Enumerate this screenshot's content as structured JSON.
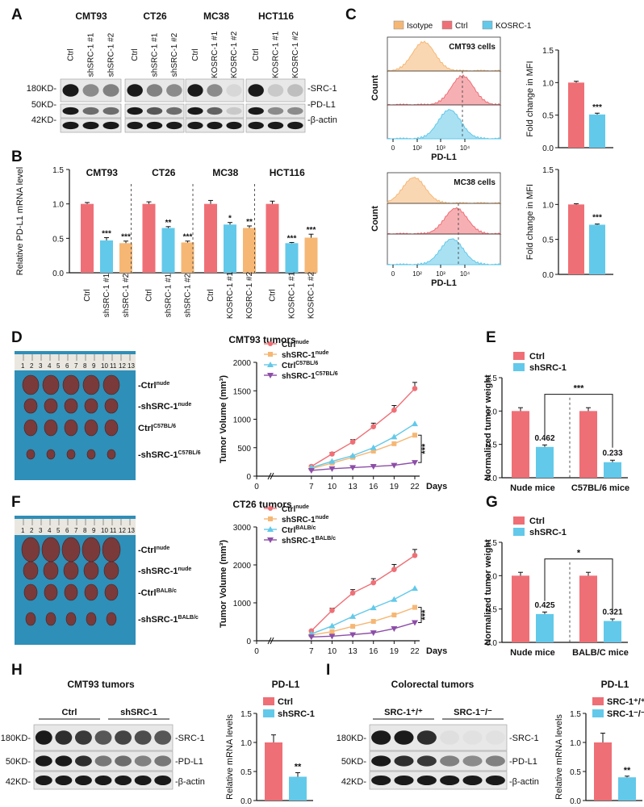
{
  "colors": {
    "red": "#ef6f76",
    "blue": "#62c9ea",
    "orange": "#f6b774",
    "purple": "#8d4ea8",
    "band": "#1a1a1a",
    "membrane": "#e8e8e8",
    "tray": "#2e8fb8"
  },
  "panel_labels": {
    "A": "A",
    "B": "B",
    "C": "C",
    "D": "D",
    "E": "E",
    "F": "F",
    "G": "G",
    "H": "H",
    "I": "I"
  },
  "panelA": {
    "lines": [
      "CMT93",
      "CT26",
      "MC38",
      "HCT116"
    ],
    "lanes": [
      [
        "Ctrl",
        "shSRC-1 #1",
        "shSRC-1 #2"
      ],
      [
        "Ctrl",
        "shSRC-1 #1",
        "shSRC-1 #2"
      ],
      [
        "Ctrl",
        "KOSRC-1 #1",
        "KOSRC-1 #2"
      ],
      [
        "Ctrl",
        "KOSRC-1 #1",
        "KOSRC-1 #2"
      ]
    ],
    "mw": [
      "180KD-",
      "50KD-",
      "42KD-"
    ],
    "proteins": [
      "-SRC-1",
      "-PD-L1",
      "-β-actin"
    ]
  },
  "panelC": {
    "legend": [
      "Isotype",
      "Ctrl",
      "KOSRC-1"
    ],
    "cells": [
      "CMT93 cells",
      "MC38 cells"
    ],
    "ylabel": "Count",
    "xlabel": "PD-L1",
    "ticks1": [
      "0",
      "10²",
      "10³",
      "10⁴"
    ],
    "ticks2": [
      "0",
      "10²",
      "10³",
      "10⁴"
    ],
    "bar_ylabel": "Fold change in MFI",
    "bar_ticks": [
      "0.0",
      "0.5",
      "1.0",
      "1.5"
    ],
    "sig": "***"
  },
  "panelD": {
    "title": "CMT93 tumors"
  },
  "panelF": {
    "title": "CT26 tumors"
  },
  "panelH": {
    "title": "CMT93 tumors",
    "groups": [
      "Ctrl",
      "shSRC-1"
    ],
    "mw": [
      "180KD-",
      "50KD-",
      "42KD-"
    ],
    "proteins": [
      "-SRC-1",
      "-PD-L1",
      "-β-actin"
    ],
    "bar_title": "PD-L1"
  },
  "panelI": {
    "title": "Colorectal tumors",
    "groups": [
      "SRC-1⁺/⁺",
      "SRC-1⁻/⁻"
    ],
    "mw": [
      "180KD-",
      "50KD-",
      "42KD-"
    ],
    "proteins": [
      "-SRC-1",
      "-PD-L1",
      "-β-actin"
    ],
    "bar_title": "PD-L1"
  },
  "chart_data": [
    {
      "id": "B",
      "type": "bar",
      "ylabel": "Relative PD-L1 mRNA level",
      "ylim": [
        0,
        1.5
      ],
      "yticks": [
        "0.0",
        "0.5",
        "1.0",
        "1.5"
      ],
      "groups": [
        {
          "title": "CMT93",
          "categories": [
            "Ctrl",
            "shSRC-1 #1",
            "shSRC-1 #2"
          ],
          "values": [
            1.0,
            0.47,
            0.43
          ],
          "errors": [
            0.02,
            0.04,
            0.03
          ],
          "sig": [
            "",
            "***",
            "***"
          ]
        },
        {
          "title": "CT26",
          "categories": [
            "Ctrl",
            "shSRC-1 #1",
            "shSRC-1 #2"
          ],
          "values": [
            1.0,
            0.65,
            0.44
          ],
          "errors": [
            0.03,
            0.02,
            0.02
          ],
          "sig": [
            "",
            "**",
            "***"
          ]
        },
        {
          "title": "MC38",
          "categories": [
            "Ctrl",
            "KOSRC-1 #1",
            "KOSRC-1 #2"
          ],
          "values": [
            1.0,
            0.7,
            0.65
          ],
          "errors": [
            0.05,
            0.03,
            0.03
          ],
          "sig": [
            "",
            "*",
            "**"
          ]
        },
        {
          "title": "HCT116",
          "categories": [
            "Ctrl",
            "KOSRC-1 #1",
            "KOSRC-1 #2"
          ],
          "values": [
            1.0,
            0.43,
            0.51
          ],
          "errors": [
            0.04,
            0.01,
            0.05
          ],
          "sig": [
            "",
            "***",
            "***"
          ]
        }
      ]
    },
    {
      "id": "C-top",
      "type": "bar",
      "title": "CMT93 cells",
      "ylabel": "Fold change in MFI",
      "categories": [
        "Ctrl",
        "KOSRC-1"
      ],
      "values": [
        1.0,
        0.51
      ],
      "errors": [
        0.02,
        0.02
      ],
      "ylim": [
        0,
        1.5
      ],
      "sig": "***"
    },
    {
      "id": "C-bottom",
      "type": "bar",
      "title": "MC38 cells",
      "ylabel": "Fold change in MFI",
      "categories": [
        "Ctrl",
        "KOSRC-1"
      ],
      "values": [
        1.0,
        0.71
      ],
      "errors": [
        0.01,
        0.01
      ],
      "ylim": [
        0,
        1.5
      ],
      "sig": "***"
    },
    {
      "id": "D",
      "type": "line",
      "title": "CMT93 tumors",
      "ylabel": "Tumor Volume (mm³)",
      "xlabel": "Days",
      "x": [
        7,
        10,
        13,
        16,
        19,
        22
      ],
      "xticks": [
        "0",
        "7",
        "10",
        "13",
        "16",
        "19",
        "22"
      ],
      "ylim": [
        0,
        2000
      ],
      "yticks": [
        "0",
        "500",
        "1000",
        "1500",
        "2000"
      ],
      "series": [
        {
          "name": "Ctrl",
          "sup": "nude",
          "values": [
            170,
            390,
            600,
            870,
            1160,
            1540
          ],
          "marker": "circle",
          "color": "red"
        },
        {
          "name": "shSRC-1",
          "sup": "nude",
          "values": [
            130,
            230,
            330,
            440,
            570,
            720
          ],
          "marker": "square",
          "color": "orange"
        },
        {
          "name": "Ctrl",
          "sup": "C57BL/6",
          "values": [
            150,
            260,
            360,
            500,
            690,
            920
          ],
          "marker": "triangle",
          "color": "blue"
        },
        {
          "name": "shSRC-1",
          "sup": "C57BL/6",
          "values": [
            100,
            130,
            150,
            170,
            190,
            240
          ],
          "marker": "tri-down",
          "color": "purple"
        }
      ],
      "sig": "***",
      "photo_labels": [
        [
          "-Ctrl",
          "nude"
        ],
        [
          "-shSRC-1",
          "nude"
        ],
        [
          "Ctrl",
          "C57BL/6"
        ],
        [
          "-shSRC-1",
          "C57BL/6"
        ]
      ]
    },
    {
      "id": "E",
      "type": "bar",
      "ylabel": "Normalized tumor weight",
      "categories": [
        "Nude mice",
        "C57BL/6 mice"
      ],
      "legend": [
        "Ctrl",
        "shSRC-1"
      ],
      "values_ctrl": [
        1.0,
        1.0
      ],
      "values_sh": [
        0.462,
        0.233
      ],
      "labels": [
        "0.462",
        "0.233"
      ],
      "ylim": [
        0,
        1.5
      ],
      "yticks": [
        "0.0",
        "0.5",
        "1.0",
        "1.5"
      ],
      "sig": "***"
    },
    {
      "id": "F",
      "type": "line",
      "title": "CT26 tumors",
      "ylabel": "Tumor Volume (mm³)",
      "xlabel": "Days",
      "x": [
        7,
        10,
        13,
        16,
        19,
        22
      ],
      "xticks": [
        "0",
        "7",
        "10",
        "13",
        "16",
        "19",
        "22"
      ],
      "ylim": [
        0,
        3000
      ],
      "yticks": [
        "0",
        "1000",
        "2000",
        "3000"
      ],
      "series": [
        {
          "name": "Ctrl",
          "sup": "nude",
          "values": [
            260,
            800,
            1260,
            1530,
            1880,
            2250
          ],
          "marker": "circle",
          "color": "red"
        },
        {
          "name": "shSRC-1",
          "sup": "nude",
          "values": [
            150,
            240,
            380,
            510,
            680,
            880
          ],
          "marker": "square",
          "color": "orange"
        },
        {
          "name": "Ctrl",
          "sup": "BALB/c",
          "values": [
            180,
            390,
            640,
            870,
            1090,
            1380
          ],
          "marker": "triangle",
          "color": "blue"
        },
        {
          "name": "shSRC-1",
          "sup": "BALB/c",
          "values": [
            100,
            120,
            160,
            210,
            320,
            480
          ],
          "marker": "tri-down",
          "color": "purple"
        }
      ],
      "sig": "***",
      "photo_labels": [
        [
          "-Ctrl",
          "nude"
        ],
        [
          "-shSRC-1",
          "nude"
        ],
        [
          "-Ctrl",
          "BALB/c"
        ],
        [
          "-shSRC-1",
          "BALB/c"
        ]
      ]
    },
    {
      "id": "G",
      "type": "bar",
      "ylabel": "Normalized tumor weight",
      "categories": [
        "Nude mice",
        "BALB/C mice"
      ],
      "legend": [
        "Ctrl",
        "shSRC-1"
      ],
      "values_ctrl": [
        1.0,
        1.0
      ],
      "values_sh": [
        0.425,
        0.321
      ],
      "labels": [
        "0.425",
        "0.321"
      ],
      "ylim": [
        0,
        1.5
      ],
      "yticks": [
        "0.0",
        "0.5",
        "1.0",
        "1.5"
      ],
      "sig": "*"
    },
    {
      "id": "H",
      "type": "bar",
      "title": "PD-L1",
      "ylabel": "Relative mRNA levels",
      "categories": [
        "Ctrl",
        "shSRC-1"
      ],
      "values": [
        1.0,
        0.41
      ],
      "errors": [
        0.13,
        0.07
      ],
      "ylim": [
        0,
        1.5
      ],
      "yticks": [
        "0.0",
        "0.5",
        "1.0",
        "1.5"
      ],
      "sig": "**"
    },
    {
      "id": "I",
      "type": "bar",
      "title": "PD-L1",
      "ylabel": "Relative mRNA levels",
      "categories": [
        "SRC-1⁺/⁺",
        "SRC-1⁻/⁻"
      ],
      "values": [
        1.0,
        0.4
      ],
      "errors": [
        0.16,
        0.02
      ],
      "ylim": [
        0,
        1.5
      ],
      "yticks": [
        "0.0",
        "0.5",
        "1.0",
        "1.5"
      ],
      "sig": "**"
    }
  ]
}
